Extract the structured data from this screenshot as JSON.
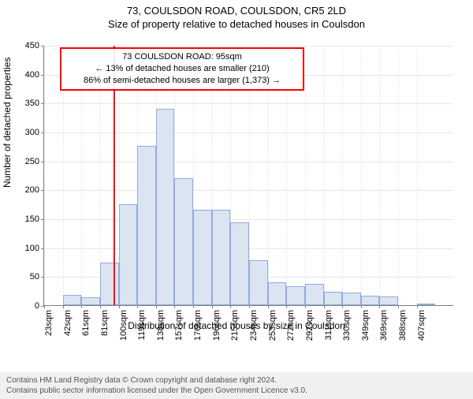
{
  "title_line1": "73, COULSDON ROAD, COULSDON, CR5 2LD",
  "title_line2": "Size of property relative to detached houses in Coulsdon",
  "ylabel": "Number of detached properties",
  "xlabel": "Distribution of detached houses by size in Coulsdon",
  "footer_line1": "Contains HM Land Registry data © Crown copyright and database right 2024.",
  "footer_line2": "Contains public sector information licensed under the Open Government Licence v3.0.",
  "histogram": {
    "type": "histogram",
    "ylim": [
      0,
      450
    ],
    "ytick_step": 50,
    "bar_fill": "#dbe5f1",
    "bar_border": "#8faadc",
    "grid_color": "#e8e8e8",
    "axis_color": "#808080",
    "background_color": "#ffffff",
    "font_family": "Arial",
    "title_fontsize": 13,
    "label_fontsize": 12,
    "tick_fontsize": 11,
    "bin_labels": [
      "23sqm",
      "42sqm",
      "61sqm",
      "81sqm",
      "100sqm",
      "119sqm",
      "138sqm",
      "157sqm",
      "176sqm",
      "196sqm",
      "215sqm",
      "234sqm",
      "253sqm",
      "272sqm",
      "292sqm",
      "311sqm",
      "330sqm",
      "349sqm",
      "369sqm",
      "388sqm",
      "407sqm"
    ],
    "values": [
      0,
      18,
      13,
      73,
      175,
      276,
      339,
      220,
      165,
      165,
      143,
      78,
      40,
      33,
      37,
      23,
      22,
      16,
      15,
      0,
      3,
      0
    ],
    "reference_line": {
      "x_sqm": 95,
      "color": "#ff0000",
      "width": 2
    },
    "annotation": {
      "lines": [
        "73 COULSDON ROAD: 95sqm",
        "← 13% of detached houses are smaller (210)",
        "86% of semi-detached houses are larger (1,373) →"
      ],
      "border_color": "#ff0000",
      "fontsize": 11
    }
  }
}
